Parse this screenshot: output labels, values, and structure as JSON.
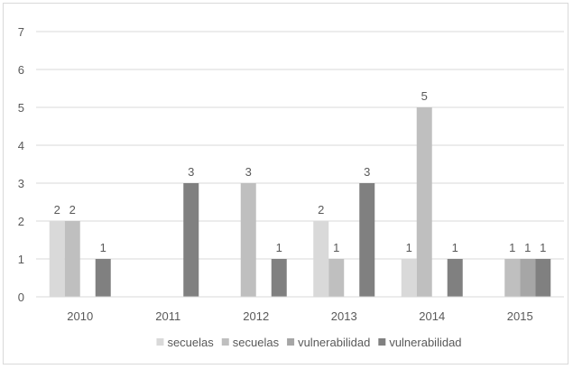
{
  "chart_data": {
    "type": "bar",
    "title": "",
    "xlabel": "",
    "ylabel": "",
    "categories": [
      "2010",
      "2011",
      "2012",
      "2013",
      "2014",
      "2015"
    ],
    "ylim": [
      0,
      7
    ],
    "yticks": [
      "0",
      "1",
      "2",
      "3",
      "4",
      "5",
      "6",
      "7"
    ],
    "grid": true,
    "legend_position": "bottom",
    "series": [
      {
        "name": "secuelas",
        "color": "#d9d9d9",
        "values": [
          2,
          null,
          null,
          2,
          1,
          null
        ]
      },
      {
        "name": "secuelas",
        "color": "#bfbfbf",
        "values": [
          2,
          null,
          3,
          1,
          5,
          1
        ]
      },
      {
        "name": "vulnerabilidad",
        "color": "#a6a6a6",
        "values": [
          null,
          null,
          null,
          null,
          null,
          1
        ]
      },
      {
        "name": "vulnerabilidad",
        "color": "#808080",
        "values": [
          1,
          3,
          1,
          3,
          1,
          1
        ]
      }
    ]
  }
}
